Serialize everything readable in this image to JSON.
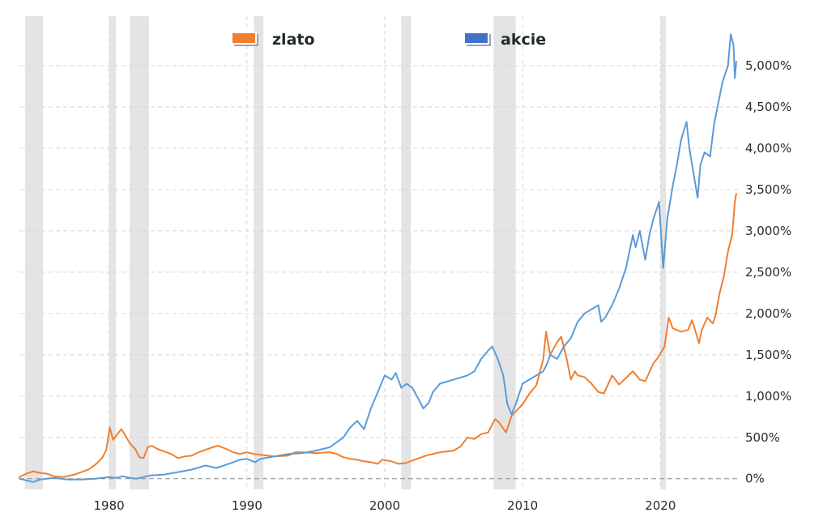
{
  "chart_data": {
    "type": "line",
    "title": "",
    "xlabel": "",
    "ylabel": "",
    "xlim": [
      1973.5,
      2025.8
    ],
    "ylim": [
      -130,
      5500
    ],
    "x_ticks": [
      {
        "value": 1980,
        "label": "1980"
      },
      {
        "value": 1990,
        "label": "1990"
      },
      {
        "value": 2000,
        "label": "2000"
      },
      {
        "value": 2010,
        "label": "2010"
      },
      {
        "value": 2020,
        "label": "2020"
      }
    ],
    "y_ticks": [
      {
        "value": 0,
        "label": "0%"
      },
      {
        "value": 500,
        "label": "500%"
      },
      {
        "value": 1000,
        "label": "1,000%"
      },
      {
        "value": 1500,
        "label": "1,500%"
      },
      {
        "value": 2000,
        "label": "2,000%"
      },
      {
        "value": 2500,
        "label": "2,500%"
      },
      {
        "value": 3000,
        "label": "3,000%"
      },
      {
        "value": 3500,
        "label": "3,500%"
      },
      {
        "value": 4000,
        "label": "4,000%"
      },
      {
        "value": 4500,
        "label": "4,500%"
      },
      {
        "value": 5000,
        "label": "5,000%"
      }
    ],
    "grid": true,
    "legend_position": "top",
    "recession_shading": [
      [
        1973.9,
        1975.2
      ],
      [
        1980.0,
        1980.5
      ],
      [
        1981.5,
        1982.9
      ],
      [
        1990.5,
        1991.2
      ],
      [
        2001.2,
        2001.9
      ],
      [
        2007.9,
        2009.5
      ],
      [
        2020.0,
        2020.4
      ]
    ],
    "series": [
      {
        "name": "zlato",
        "color": "#f07f30",
        "points": [
          [
            1973.5,
            20
          ],
          [
            1974.0,
            60
          ],
          [
            1974.5,
            90
          ],
          [
            1975.0,
            70
          ],
          [
            1975.5,
            60
          ],
          [
            1976.0,
            30
          ],
          [
            1976.7,
            20
          ],
          [
            1977.5,
            50
          ],
          [
            1978.0,
            80
          ],
          [
            1978.5,
            110
          ],
          [
            1979.0,
            170
          ],
          [
            1979.5,
            250
          ],
          [
            1979.8,
            350
          ],
          [
            1980.05,
            620
          ],
          [
            1980.3,
            470
          ],
          [
            1980.6,
            540
          ],
          [
            1980.9,
            600
          ],
          [
            1981.2,
            520
          ],
          [
            1981.5,
            430
          ],
          [
            1981.9,
            360
          ],
          [
            1982.2,
            260
          ],
          [
            1982.5,
            250
          ],
          [
            1982.8,
            380
          ],
          [
            1983.1,
            400
          ],
          [
            1983.5,
            360
          ],
          [
            1984.0,
            330
          ],
          [
            1984.5,
            300
          ],
          [
            1985.0,
            250
          ],
          [
            1985.5,
            270
          ],
          [
            1986.0,
            280
          ],
          [
            1986.5,
            320
          ],
          [
            1987.0,
            350
          ],
          [
            1987.5,
            380
          ],
          [
            1987.9,
            400
          ],
          [
            1988.5,
            360
          ],
          [
            1989.0,
            320
          ],
          [
            1989.5,
            300
          ],
          [
            1990.0,
            320
          ],
          [
            1990.5,
            300
          ],
          [
            1991.0,
            290
          ],
          [
            1992.0,
            270
          ],
          [
            1993.0,
            280
          ],
          [
            1993.5,
            320
          ],
          [
            1994.0,
            320
          ],
          [
            1995.0,
            310
          ],
          [
            1996.0,
            320
          ],
          [
            1996.5,
            300
          ],
          [
            1997.0,
            260
          ],
          [
            1997.5,
            240
          ],
          [
            1998.0,
            230
          ],
          [
            1998.5,
            210
          ],
          [
            1999.0,
            200
          ],
          [
            1999.5,
            180
          ],
          [
            1999.8,
            230
          ],
          [
            2000.5,
            210
          ],
          [
            2001.0,
            180
          ],
          [
            2001.5,
            190
          ],
          [
            2002.0,
            220
          ],
          [
            2002.5,
            250
          ],
          [
            2003.0,
            280
          ],
          [
            2004.0,
            320
          ],
          [
            2005.0,
            340
          ],
          [
            2005.5,
            390
          ],
          [
            2006.0,
            500
          ],
          [
            2006.5,
            480
          ],
          [
            2007.0,
            540
          ],
          [
            2007.5,
            560
          ],
          [
            2008.0,
            720
          ],
          [
            2008.3,
            680
          ],
          [
            2008.8,
            560
          ],
          [
            2009.2,
            760
          ],
          [
            2009.6,
            830
          ],
          [
            2010.0,
            900
          ],
          [
            2010.5,
            1030
          ],
          [
            2011.0,
            1130
          ],
          [
            2011.5,
            1450
          ],
          [
            2011.7,
            1780
          ],
          [
            2012.0,
            1500
          ],
          [
            2012.5,
            1650
          ],
          [
            2012.8,
            1720
          ],
          [
            2013.2,
            1450
          ],
          [
            2013.5,
            1200
          ],
          [
            2013.8,
            1300
          ],
          [
            2014.0,
            1250
          ],
          [
            2014.5,
            1230
          ],
          [
            2015.0,
            1150
          ],
          [
            2015.5,
            1050
          ],
          [
            2015.9,
            1030
          ],
          [
            2016.5,
            1250
          ],
          [
            2017.0,
            1140
          ],
          [
            2017.5,
            1220
          ],
          [
            2018.0,
            1300
          ],
          [
            2018.5,
            1200
          ],
          [
            2018.9,
            1180
          ],
          [
            2019.5,
            1400
          ],
          [
            2019.8,
            1460
          ],
          [
            2020.3,
            1600
          ],
          [
            2020.6,
            1950
          ],
          [
            2020.9,
            1820
          ],
          [
            2021.5,
            1780
          ],
          [
            2022.0,
            1800
          ],
          [
            2022.3,
            1920
          ],
          [
            2022.8,
            1640
          ],
          [
            2023.0,
            1800
          ],
          [
            2023.4,
            1950
          ],
          [
            2023.8,
            1880
          ],
          [
            2024.0,
            1980
          ],
          [
            2024.3,
            2250
          ],
          [
            2024.6,
            2450
          ],
          [
            2024.9,
            2750
          ],
          [
            2025.2,
            2950
          ],
          [
            2025.4,
            3350
          ],
          [
            2025.5,
            3450
          ]
        ]
      },
      {
        "name": "akcie",
        "color": "#5b9bd5",
        "points": [
          [
            1973.5,
            0
          ],
          [
            1974.0,
            -20
          ],
          [
            1974.5,
            -40
          ],
          [
            1975.0,
            -10
          ],
          [
            1975.5,
            0
          ],
          [
            1976.0,
            10
          ],
          [
            1977.0,
            -10
          ],
          [
            1978.0,
            -10
          ],
          [
            1979.0,
            0
          ],
          [
            1980.0,
            20
          ],
          [
            1980.5,
            10
          ],
          [
            1981.0,
            30
          ],
          [
            1981.5,
            10
          ],
          [
            1982.0,
            0
          ],
          [
            1982.5,
            20
          ],
          [
            1983.0,
            40
          ],
          [
            1984.0,
            50
          ],
          [
            1985.0,
            80
          ],
          [
            1986.0,
            110
          ],
          [
            1987.0,
            160
          ],
          [
            1987.8,
            130
          ],
          [
            1988.5,
            170
          ],
          [
            1989.0,
            200
          ],
          [
            1989.5,
            230
          ],
          [
            1990.0,
            240
          ],
          [
            1990.6,
            200
          ],
          [
            1991.0,
            240
          ],
          [
            1992.0,
            270
          ],
          [
            1993.0,
            300
          ],
          [
            1994.0,
            310
          ],
          [
            1995.0,
            340
          ],
          [
            1996.0,
            380
          ],
          [
            1996.5,
            440
          ],
          [
            1997.0,
            500
          ],
          [
            1997.5,
            620
          ],
          [
            1998.0,
            700
          ],
          [
            1998.5,
            600
          ],
          [
            1998.8,
            750
          ],
          [
            1999.0,
            850
          ],
          [
            1999.5,
            1050
          ],
          [
            2000.0,
            1250
          ],
          [
            2000.5,
            1200
          ],
          [
            2000.8,
            1280
          ],
          [
            2001.2,
            1100
          ],
          [
            2001.6,
            1150
          ],
          [
            2002.0,
            1100
          ],
          [
            2002.5,
            950
          ],
          [
            2002.8,
            850
          ],
          [
            2003.2,
            920
          ],
          [
            2003.5,
            1050
          ],
          [
            2004.0,
            1150
          ],
          [
            2005.0,
            1200
          ],
          [
            2006.0,
            1250
          ],
          [
            2006.5,
            1300
          ],
          [
            2007.0,
            1450
          ],
          [
            2007.5,
            1550
          ],
          [
            2007.8,
            1600
          ],
          [
            2008.2,
            1450
          ],
          [
            2008.6,
            1250
          ],
          [
            2008.9,
            900
          ],
          [
            2009.2,
            780
          ],
          [
            2009.5,
            900
          ],
          [
            2010.0,
            1150
          ],
          [
            2010.5,
            1200
          ],
          [
            2011.0,
            1250
          ],
          [
            2011.5,
            1300
          ],
          [
            2011.8,
            1400
          ],
          [
            2012.0,
            1500
          ],
          [
            2012.5,
            1450
          ],
          [
            2013.0,
            1600
          ],
          [
            2013.5,
            1700
          ],
          [
            2014.0,
            1900
          ],
          [
            2014.5,
            2000
          ],
          [
            2015.0,
            2050
          ],
          [
            2015.5,
            2100
          ],
          [
            2015.7,
            1900
          ],
          [
            2016.0,
            1950
          ],
          [
            2016.5,
            2100
          ],
          [
            2017.0,
            2300
          ],
          [
            2017.5,
            2550
          ],
          [
            2018.0,
            2950
          ],
          [
            2018.2,
            2800
          ],
          [
            2018.5,
            3000
          ],
          [
            2018.9,
            2650
          ],
          [
            2019.2,
            2950
          ],
          [
            2019.5,
            3150
          ],
          [
            2019.9,
            3350
          ],
          [
            2020.2,
            2550
          ],
          [
            2020.5,
            3150
          ],
          [
            2020.9,
            3550
          ],
          [
            2021.2,
            3800
          ],
          [
            2021.5,
            4100
          ],
          [
            2021.9,
            4320
          ],
          [
            2022.1,
            4000
          ],
          [
            2022.4,
            3700
          ],
          [
            2022.7,
            3400
          ],
          [
            2022.9,
            3800
          ],
          [
            2023.2,
            3950
          ],
          [
            2023.6,
            3900
          ],
          [
            2023.9,
            4300
          ],
          [
            2024.2,
            4550
          ],
          [
            2024.5,
            4800
          ],
          [
            2024.9,
            5000
          ],
          [
            2025.1,
            5380
          ],
          [
            2025.3,
            5250
          ],
          [
            2025.4,
            4850
          ],
          [
            2025.5,
            5050
          ]
        ]
      }
    ]
  }
}
